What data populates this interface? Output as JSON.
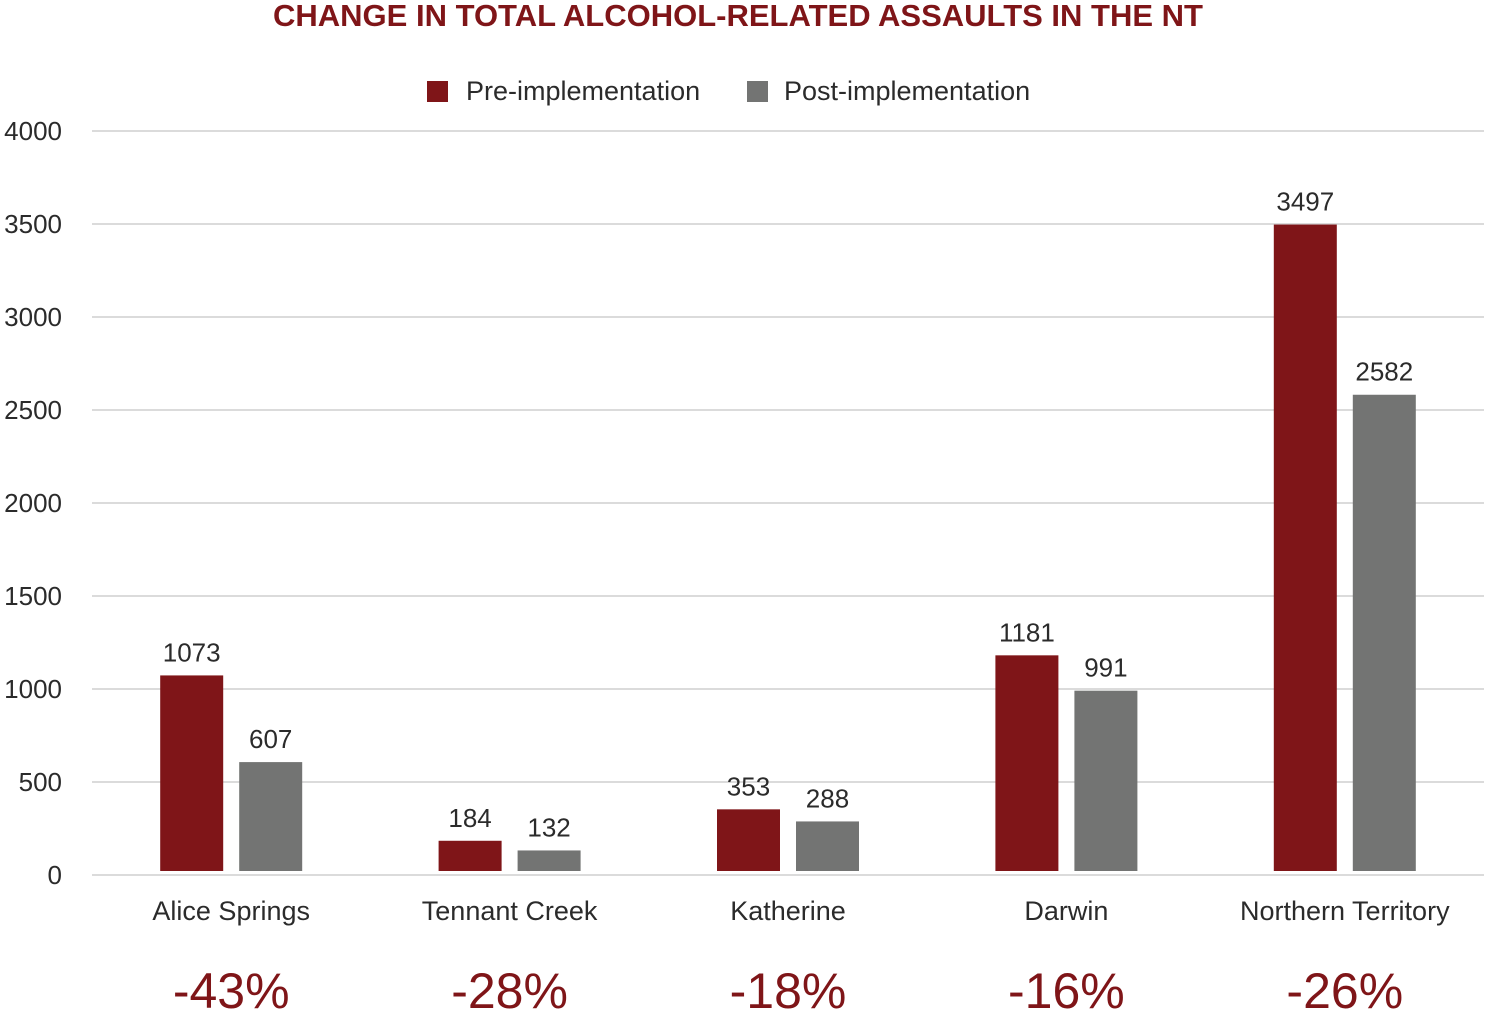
{
  "chart_data": {
    "type": "bar",
    "title": "CHANGE IN TOTAL ALCOHOL-RELATED ASSAULTS IN THE NT",
    "categories": [
      "Alice Springs",
      "Tennant Creek",
      "Katherine",
      "Darwin",
      "Northern Territory"
    ],
    "series": [
      {
        "name": "Pre-implementation",
        "color": "#7f1518",
        "values": [
          1073,
          184,
          353,
          1181,
          3497
        ]
      },
      {
        "name": "Post-implementation",
        "color": "#737473",
        "values": [
          607,
          132,
          288,
          991,
          2582
        ]
      }
    ],
    "percent_change": [
      "-43%",
      "-28%",
      "-18%",
      "-16%",
      "-26%"
    ],
    "ylim": [
      0,
      4000
    ],
    "yticks": [
      0,
      500,
      1000,
      1500,
      2000,
      2500,
      3000,
      3500,
      4000
    ],
    "grid": true,
    "legend_position": "top-center",
    "colors": {
      "title": "#7f1518",
      "percent": "#7f1518",
      "grid": "#cfcfcf",
      "text": "#2b2b2b"
    }
  }
}
